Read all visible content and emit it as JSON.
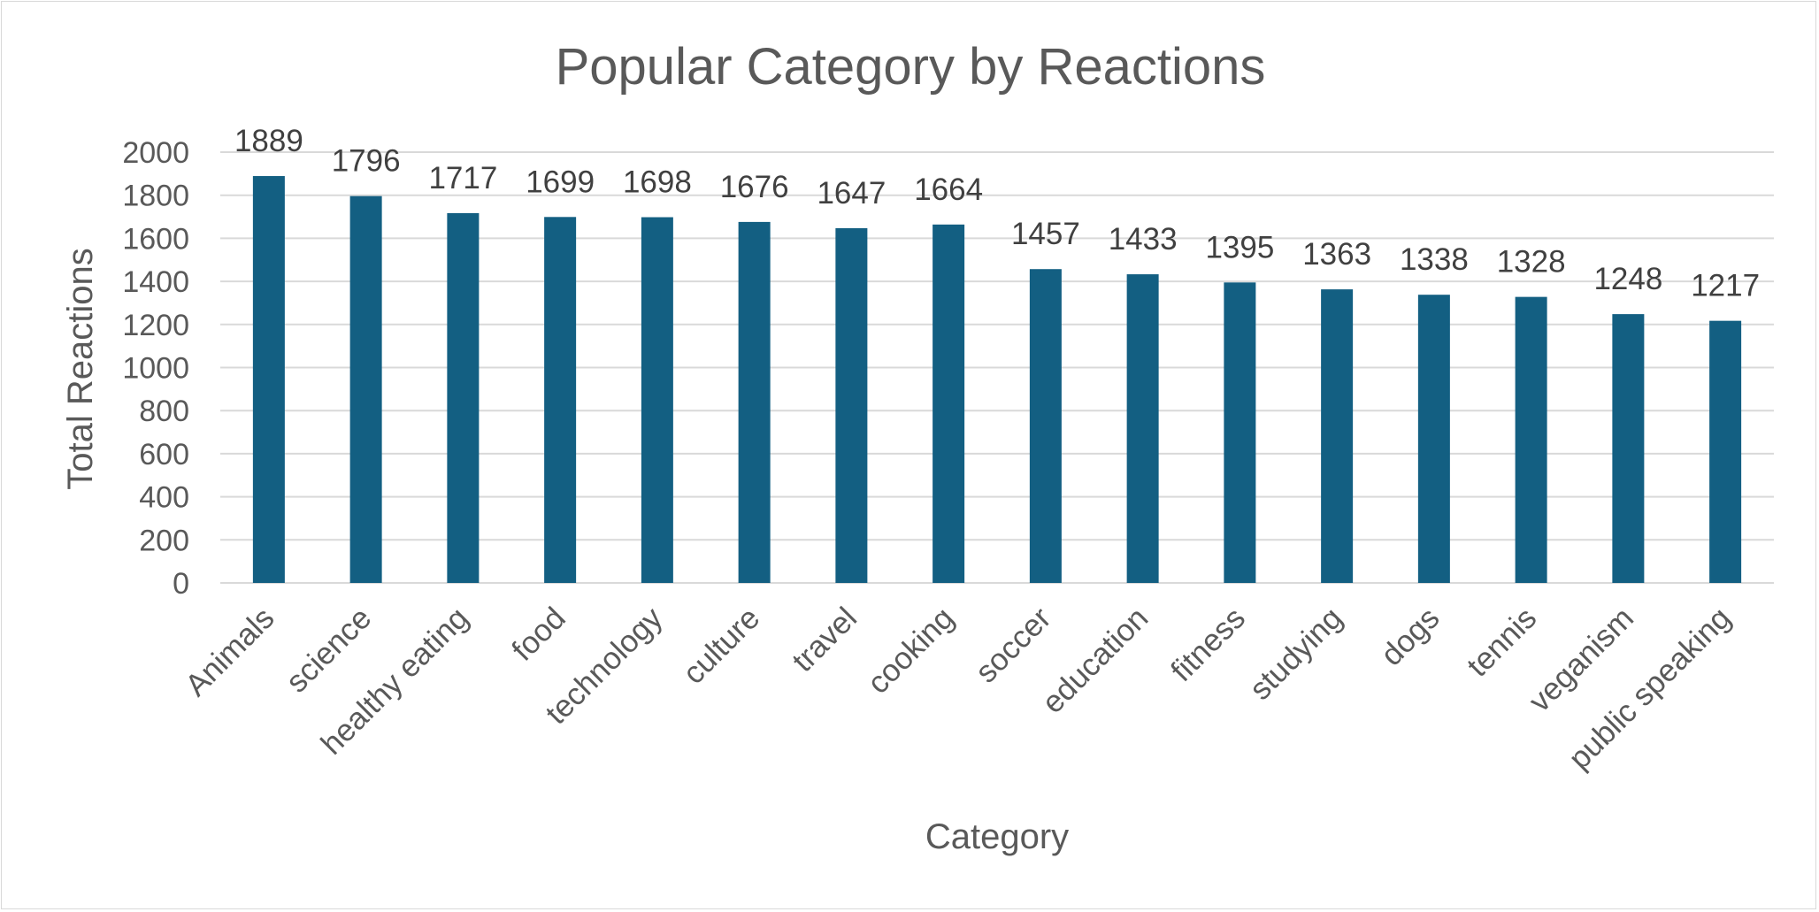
{
  "colors": {
    "bar": "#135f82",
    "grid": "#d9d9d9",
    "text": "#595959",
    "label": "#404040"
  },
  "chart_data": {
    "type": "bar",
    "title": "Popular Category by Reactions",
    "xlabel": "Category",
    "ylabel": "Total Reactions",
    "ylim": [
      0,
      2000
    ],
    "yticks": [
      0,
      200,
      400,
      600,
      800,
      1000,
      1200,
      1400,
      1600,
      1800,
      2000
    ],
    "grid": true,
    "legend": "none",
    "categories": [
      "Animals",
      "science",
      "healthy eating",
      "food",
      "technology",
      "culture",
      "travel",
      "cooking",
      "soccer",
      "education",
      "fitness",
      "studying",
      "dogs",
      "tennis",
      "veganism",
      "public speaking"
    ],
    "values": [
      1889,
      1796,
      1717,
      1699,
      1698,
      1676,
      1647,
      1664,
      1457,
      1433,
      1395,
      1363,
      1338,
      1328,
      1248,
      1217
    ]
  }
}
